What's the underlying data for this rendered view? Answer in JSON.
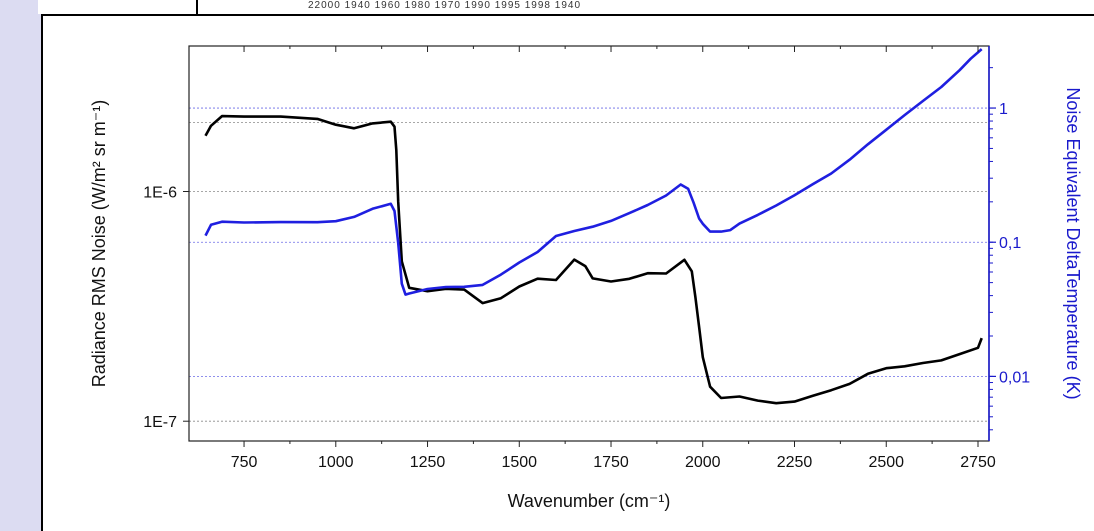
{
  "chart_data": {
    "type": "line",
    "xlabel": "Wavenumber (cm⁻¹)",
    "ylabel_left": "Radiance RMS Noise (W/m² sr m⁻¹)",
    "ylabel_right": "Noise Equivalent DeltaTemperature (K)",
    "xlim": [
      600,
      2780
    ],
    "ylim_left": [
      8.2e-08,
      4.3e-06
    ],
    "ylim_right": [
      0.0033,
      2.9
    ],
    "yscale_left": "log",
    "yscale_right": "log",
    "x_ticks": [
      750,
      1000,
      1250,
      1500,
      1750,
      2000,
      2250,
      2500,
      2750
    ],
    "y_left_ticks": [
      {
        "value": 1e-06,
        "label": "1E-6"
      },
      {
        "value": 1e-07,
        "label": "1E-7"
      }
    ],
    "y_right_ticks": [
      {
        "value": 1,
        "label": "1"
      },
      {
        "value": 0.1,
        "label": "0,1"
      },
      {
        "value": 0.01,
        "label": "0,01"
      }
    ],
    "grid": {
      "left": [
        2e-06,
        1e-06,
        1e-07
      ],
      "right": [
        1,
        0.1,
        0.01
      ]
    },
    "series": [
      {
        "axis": "left",
        "color": "#000000",
        "x": [
          645,
          660,
          690,
          750,
          850,
          950,
          1000,
          1050,
          1100,
          1150,
          1160,
          1165,
          1170,
          1180,
          1200,
          1250,
          1300,
          1350,
          1400,
          1450,
          1500,
          1550,
          1600,
          1650,
          1680,
          1700,
          1750,
          1800,
          1850,
          1900,
          1950,
          1970,
          1980,
          1990,
          2000,
          2020,
          2050,
          2100,
          2150,
          2200,
          2250,
          2300,
          2350,
          2400,
          2450,
          2500,
          2550,
          2600,
          2650,
          2700,
          2750,
          2760
        ],
        "y": [
          1.75e-06,
          1.95e-06,
          2.15e-06,
          2.12e-06,
          2.1e-06,
          2.05e-06,
          1.95e-06,
          1.9e-06,
          2e-06,
          2.02e-06,
          1.9e-06,
          1.5e-06,
          9e-07,
          5e-07,
          3.85e-07,
          3.7e-07,
          3.75e-07,
          3.7e-07,
          3.25e-07,
          3.45e-07,
          3.9e-07,
          4.2e-07,
          4.1e-07,
          5e-07,
          4.7e-07,
          4.2e-07,
          4.1e-07,
          4.2e-07,
          4.4e-07,
          4.35e-07,
          5e-07,
          4.5e-07,
          3.5e-07,
          2.6e-07,
          1.9e-07,
          1.4e-07,
          1.25e-07,
          1.28e-07,
          1.24e-07,
          1.21e-07,
          1.22e-07,
          1.28e-07,
          1.35e-07,
          1.45e-07,
          1.62e-07,
          1.72e-07,
          1.74e-07,
          1.78e-07,
          1.82e-07,
          1.95e-07,
          2.1e-07,
          2.3e-07
        ]
      },
      {
        "axis": "right",
        "color": "#1f1fe0",
        "x": [
          645,
          660,
          690,
          750,
          850,
          950,
          1000,
          1050,
          1100,
          1150,
          1160,
          1170,
          1180,
          1190,
          1200,
          1250,
          1300,
          1350,
          1400,
          1450,
          1500,
          1550,
          1600,
          1650,
          1700,
          1750,
          1800,
          1850,
          1900,
          1940,
          1960,
          1975,
          1990,
          2000,
          2020,
          2050,
          2075,
          2100,
          2150,
          2200,
          2250,
          2300,
          2350,
          2400,
          2450,
          2500,
          2550,
          2600,
          2650,
          2700,
          2730,
          2760
        ],
        "y": [
          0.112,
          0.135,
          0.14,
          0.138,
          0.141,
          0.143,
          0.146,
          0.155,
          0.175,
          0.19,
          0.17,
          0.1,
          0.05,
          0.041,
          0.041,
          0.044,
          0.046,
          0.047,
          0.049,
          0.058,
          0.07,
          0.083,
          0.11,
          0.122,
          0.133,
          0.146,
          0.164,
          0.186,
          0.22,
          0.27,
          0.255,
          0.2,
          0.15,
          0.135,
          0.118,
          0.12,
          0.125,
          0.14,
          0.16,
          0.185,
          0.22,
          0.27,
          0.33,
          0.42,
          0.54,
          0.68,
          0.87,
          1.12,
          1.45,
          1.95,
          2.35,
          2.75
        ]
      }
    ]
  },
  "top_strip": {
    "text": "22000        1940       1960        1980       1970       1990       1995       1998      1940"
  }
}
